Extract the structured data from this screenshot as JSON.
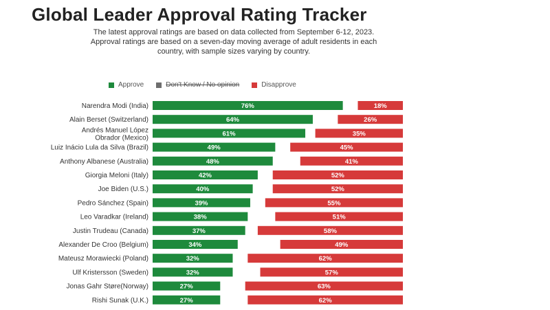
{
  "header": {
    "title": "Global Leader Approval Rating Tracker",
    "subtitle_lines": [
      "The latest approval ratings are based on data collected from September 6-12, 2023.",
      "Approval ratings are based on a seven-day moving average of adult residents in each",
      "country, with sample sizes varying by country."
    ]
  },
  "legend": [
    {
      "label": "Approve",
      "color": "#1e8a3c",
      "struck": false
    },
    {
      "label": "Don't Know / No opinion",
      "color": "#6e6e6e",
      "struck": true
    },
    {
      "label": "Disapprove",
      "color": "#d63a3a",
      "struck": false
    }
  ],
  "chart_data": {
    "type": "bar",
    "orientation": "horizontal",
    "stacked": true,
    "xlim": [
      0,
      100
    ],
    "categories": [
      [
        "Narendra Modi (India)"
      ],
      [
        "Alain Berset (Switzerland)"
      ],
      [
        "Andrés Manuel López",
        "Obrador (Mexico)"
      ],
      [
        "Luiz Inácio Lula da Silva (Brazil)"
      ],
      [
        "Anthony Albanese (Australia)"
      ],
      [
        "Giorgia Meloni (Italy)"
      ],
      [
        "Joe Biden (U.S.)"
      ],
      [
        "Pedro Sánchez (Spain)"
      ],
      [
        "Leo Varadkar (Ireland)"
      ],
      [
        "Justin Trudeau (Canada)"
      ],
      [
        "Alexander De Croo (Belgium)"
      ],
      [
        "Mateusz Morawiecki (Poland)"
      ],
      [
        "Ulf Kristersson (Sweden)"
      ],
      [
        "Jonas Gahr Støre(Norway)"
      ],
      [
        "Rishi Sunak (U.K.)"
      ]
    ],
    "series": [
      {
        "name": "Approve",
        "color": "#1e8a3c",
        "values": [
          76,
          64,
          61,
          49,
          48,
          42,
          40,
          39,
          38,
          37,
          34,
          32,
          32,
          27,
          27
        ]
      },
      {
        "name": "Disapprove",
        "color": "#d63a3a",
        "values": [
          18,
          26,
          35,
          45,
          41,
          52,
          52,
          55,
          51,
          58,
          49,
          62,
          57,
          63,
          62
        ]
      }
    ],
    "value_suffix": "%"
  }
}
